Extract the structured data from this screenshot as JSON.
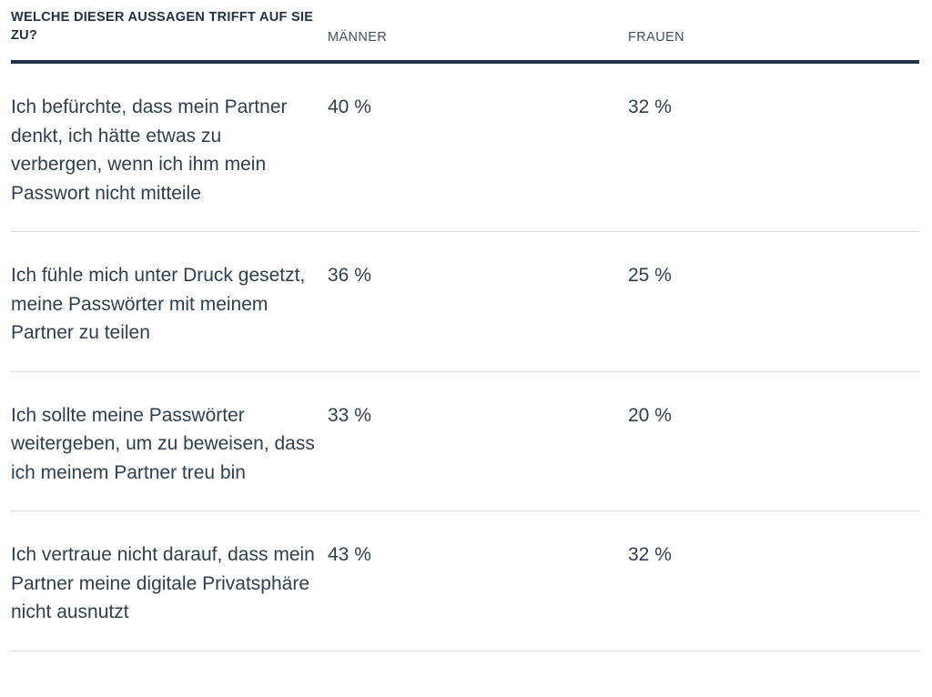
{
  "table": {
    "question_header": "WELCHE DIESER AUSSAGEN TRIFFT AUF SIE ZU?",
    "columns": [
      "MÄNNER",
      "FRAUEN"
    ],
    "rows": [
      {
        "statement": "Ich befürchte, dass mein Partner denkt, ich hätte etwas zu verbergen, wenn ich ihm mein Passwort nicht mitteile",
        "maenner": "40 %",
        "frauen": "32 %"
      },
      {
        "statement": "Ich fühle mich unter Druck gesetzt, meine Passwörter mit meinem Partner zu teilen",
        "maenner": "36 %",
        "frauen": "25 %"
      },
      {
        "statement": "Ich sollte meine Passwörter weitergeben, um zu beweisen, dass ich meinem Partner treu bin",
        "maenner": "33 %",
        "frauen": "20 %"
      },
      {
        "statement": "Ich vertraue nicht darauf, dass mein Partner meine digitale Privatsphäre nicht ausnutzt",
        "maenner": "43 %",
        "frauen": "32 %"
      }
    ]
  },
  "colors": {
    "heading_text": "#1d3347",
    "column_header_text": "#42505f",
    "body_text": "#2e3f50",
    "header_rule": "#1d3347",
    "row_divider": "#d9dde1",
    "background": "#ffffff"
  },
  "chart_data": {
    "type": "table",
    "title": "WELCHE DIESER AUSSAGEN TRIFFT AUF SIE ZU?",
    "columns": [
      "MÄNNER",
      "FRAUEN"
    ],
    "unit": "%",
    "rows": [
      {
        "statement": "Ich befürchte, dass mein Partner denkt, ich hätte etwas zu verbergen, wenn ich ihm mein Passwort nicht mitteile",
        "values": [
          40,
          32
        ]
      },
      {
        "statement": "Ich fühle mich unter Druck gesetzt, meine Passwörter mit meinem Partner zu teilen",
        "values": [
          36,
          25
        ]
      },
      {
        "statement": "Ich sollte meine Passwörter weitergeben, um zu beweisen, dass ich meinem Partner treu bin",
        "values": [
          33,
          20
        ]
      },
      {
        "statement": "Ich vertraue nicht darauf, dass mein Partner meine digitale Privatsphäre nicht ausnutzt",
        "values": [
          43,
          32
        ]
      }
    ]
  }
}
